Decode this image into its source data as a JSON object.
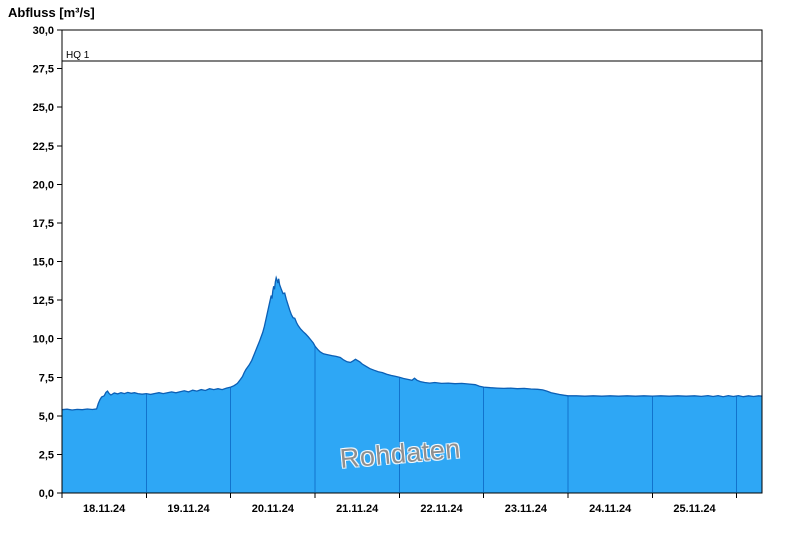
{
  "page": {
    "title": "Abfluss [m³/s]"
  },
  "chart_data": {
    "type": "area",
    "title": "Abfluss [m³/s]",
    "ylabel": "Abfluss [m³/s]",
    "xlabel": "",
    "ylim": [
      0,
      30
    ],
    "grid": "off",
    "legend": "none",
    "watermark": "Rohdaten",
    "reference_line": {
      "label": "HQ 1",
      "value": 28.0
    },
    "ytick_values": [
      0,
      2.5,
      5,
      7.5,
      10,
      12.5,
      15,
      17.5,
      20,
      22.5,
      25,
      27.5,
      30
    ],
    "ytick_labels": [
      "0,0",
      "2,5",
      "5,0",
      "7,5",
      "10,0",
      "12,5",
      "15,0",
      "17,5",
      "20,0",
      "22,5",
      "25,0",
      "27,5",
      "30,0"
    ],
    "x_range_days": [
      0,
      8.3
    ],
    "x_start_label": "18.11.24",
    "xtick_labels": [
      "18.11.24",
      "19.11.24",
      "20.11.24",
      "21.11.24",
      "22.11.24",
      "23.11.24",
      "24.11.24",
      "25.11.24"
    ],
    "xtick_positions_days": [
      0.5,
      1.5,
      2.5,
      3.5,
      4.5,
      5.5,
      6.5,
      7.5
    ],
    "day_boundaries_days": [
      0,
      1,
      2,
      3,
      4,
      5,
      6,
      7,
      8
    ],
    "colors": {
      "area_fill": "#2ea7f5",
      "area_stroke": "#0b5fb5",
      "day_line": "#1273cd",
      "reference_line": "#000000",
      "watermark": "#8f8f8f",
      "axis": "#000000"
    },
    "series": [
      {
        "name": "Abfluss Rohdaten",
        "unit": "m³/s",
        "points": [
          [
            0.0,
            5.4
          ],
          [
            0.06,
            5.43
          ],
          [
            0.12,
            5.38
          ],
          [
            0.18,
            5.42
          ],
          [
            0.24,
            5.4
          ],
          [
            0.3,
            5.44
          ],
          [
            0.36,
            5.41
          ],
          [
            0.41,
            5.45
          ],
          [
            0.43,
            5.8
          ],
          [
            0.45,
            6.05
          ],
          [
            0.47,
            6.22
          ],
          [
            0.5,
            6.3
          ],
          [
            0.52,
            6.52
          ],
          [
            0.54,
            6.6
          ],
          [
            0.56,
            6.44
          ],
          [
            0.58,
            6.35
          ],
          [
            0.62,
            6.48
          ],
          [
            0.66,
            6.42
          ],
          [
            0.7,
            6.5
          ],
          [
            0.74,
            6.44
          ],
          [
            0.78,
            6.52
          ],
          [
            0.82,
            6.46
          ],
          [
            0.86,
            6.5
          ],
          [
            0.9,
            6.44
          ],
          [
            0.95,
            6.4
          ],
          [
            1.0,
            6.44
          ],
          [
            1.05,
            6.39
          ],
          [
            1.1,
            6.45
          ],
          [
            1.15,
            6.5
          ],
          [
            1.2,
            6.44
          ],
          [
            1.25,
            6.5
          ],
          [
            1.3,
            6.55
          ],
          [
            1.35,
            6.49
          ],
          [
            1.4,
            6.56
          ],
          [
            1.45,
            6.62
          ],
          [
            1.5,
            6.55
          ],
          [
            1.55,
            6.66
          ],
          [
            1.6,
            6.6
          ],
          [
            1.65,
            6.7
          ],
          [
            1.7,
            6.64
          ],
          [
            1.75,
            6.76
          ],
          [
            1.8,
            6.7
          ],
          [
            1.85,
            6.76
          ],
          [
            1.9,
            6.7
          ],
          [
            1.95,
            6.8
          ],
          [
            2.0,
            6.86
          ],
          [
            2.04,
            6.95
          ],
          [
            2.08,
            7.1
          ],
          [
            2.11,
            7.32
          ],
          [
            2.14,
            7.55
          ],
          [
            2.16,
            7.8
          ],
          [
            2.18,
            8.0
          ],
          [
            2.2,
            8.15
          ],
          [
            2.22,
            8.3
          ],
          [
            2.25,
            8.6
          ],
          [
            2.28,
            9.0
          ],
          [
            2.31,
            9.4
          ],
          [
            2.34,
            9.8
          ],
          [
            2.36,
            10.1
          ],
          [
            2.38,
            10.4
          ],
          [
            2.4,
            10.8
          ],
          [
            2.42,
            11.3
          ],
          [
            2.44,
            11.8
          ],
          [
            2.46,
            12.3
          ],
          [
            2.48,
            12.8
          ],
          [
            2.49,
            12.6
          ],
          [
            2.5,
            13.1
          ],
          [
            2.51,
            13.4
          ],
          [
            2.52,
            13.2
          ],
          [
            2.53,
            13.7
          ],
          [
            2.54,
            13.95
          ],
          [
            2.55,
            13.78
          ],
          [
            2.56,
            13.6
          ],
          [
            2.57,
            13.88
          ],
          [
            2.58,
            13.5
          ],
          [
            2.6,
            13.2
          ],
          [
            2.62,
            12.92
          ],
          [
            2.64,
            12.95
          ],
          [
            2.66,
            12.55
          ],
          [
            2.68,
            12.2
          ],
          [
            2.7,
            11.85
          ],
          [
            2.72,
            11.55
          ],
          [
            2.74,
            11.35
          ],
          [
            2.76,
            11.32
          ],
          [
            2.78,
            11.05
          ],
          [
            2.8,
            10.85
          ],
          [
            2.83,
            10.62
          ],
          [
            2.86,
            10.45
          ],
          [
            2.89,
            10.3
          ],
          [
            2.92,
            10.12
          ],
          [
            2.95,
            9.92
          ],
          [
            2.98,
            9.72
          ],
          [
            3.0,
            9.52
          ],
          [
            3.03,
            9.32
          ],
          [
            3.06,
            9.15
          ],
          [
            3.1,
            9.02
          ],
          [
            3.15,
            8.96
          ],
          [
            3.2,
            8.9
          ],
          [
            3.25,
            8.85
          ],
          [
            3.3,
            8.78
          ],
          [
            3.34,
            8.62
          ],
          [
            3.38,
            8.5
          ],
          [
            3.42,
            8.46
          ],
          [
            3.45,
            8.56
          ],
          [
            3.48,
            8.66
          ],
          [
            3.5,
            8.6
          ],
          [
            3.53,
            8.5
          ],
          [
            3.56,
            8.36
          ],
          [
            3.6,
            8.22
          ],
          [
            3.65,
            8.06
          ],
          [
            3.7,
            7.96
          ],
          [
            3.75,
            7.86
          ],
          [
            3.8,
            7.8
          ],
          [
            3.85,
            7.7
          ],
          [
            3.9,
            7.62
          ],
          [
            3.95,
            7.56
          ],
          [
            4.0,
            7.5
          ],
          [
            4.05,
            7.42
          ],
          [
            4.1,
            7.36
          ],
          [
            4.15,
            7.3
          ],
          [
            4.18,
            7.44
          ],
          [
            4.21,
            7.3
          ],
          [
            4.25,
            7.22
          ],
          [
            4.3,
            7.16
          ],
          [
            4.36,
            7.12
          ],
          [
            4.42,
            7.16
          ],
          [
            4.5,
            7.1
          ],
          [
            4.58,
            7.12
          ],
          [
            4.66,
            7.08
          ],
          [
            4.74,
            7.1
          ],
          [
            4.82,
            7.06
          ],
          [
            4.9,
            7.02
          ],
          [
            4.95,
            6.92
          ],
          [
            5.0,
            6.86
          ],
          [
            5.08,
            6.82
          ],
          [
            5.16,
            6.8
          ],
          [
            5.24,
            6.78
          ],
          [
            5.32,
            6.8
          ],
          [
            5.4,
            6.76
          ],
          [
            5.48,
            6.78
          ],
          [
            5.56,
            6.74
          ],
          [
            5.64,
            6.72
          ],
          [
            5.7,
            6.68
          ],
          [
            5.75,
            6.6
          ],
          [
            5.8,
            6.5
          ],
          [
            5.85,
            6.44
          ],
          [
            5.9,
            6.38
          ],
          [
            5.95,
            6.34
          ],
          [
            6.0,
            6.3
          ],
          [
            6.1,
            6.3
          ],
          [
            6.2,
            6.27
          ],
          [
            6.3,
            6.3
          ],
          [
            6.4,
            6.27
          ],
          [
            6.5,
            6.3
          ],
          [
            6.6,
            6.27
          ],
          [
            6.7,
            6.3
          ],
          [
            6.8,
            6.27
          ],
          [
            6.9,
            6.3
          ],
          [
            7.0,
            6.28
          ],
          [
            7.1,
            6.3
          ],
          [
            7.2,
            6.27
          ],
          [
            7.3,
            6.3
          ],
          [
            7.4,
            6.27
          ],
          [
            7.5,
            6.3
          ],
          [
            7.58,
            6.26
          ],
          [
            7.66,
            6.31
          ],
          [
            7.72,
            6.25
          ],
          [
            7.78,
            6.31
          ],
          [
            7.84,
            6.24
          ],
          [
            7.9,
            6.31
          ],
          [
            7.96,
            6.25
          ],
          [
            8.02,
            6.31
          ],
          [
            8.08,
            6.24
          ],
          [
            8.14,
            6.3
          ],
          [
            8.2,
            6.25
          ],
          [
            8.26,
            6.3
          ],
          [
            8.3,
            6.27
          ]
        ]
      }
    ]
  }
}
